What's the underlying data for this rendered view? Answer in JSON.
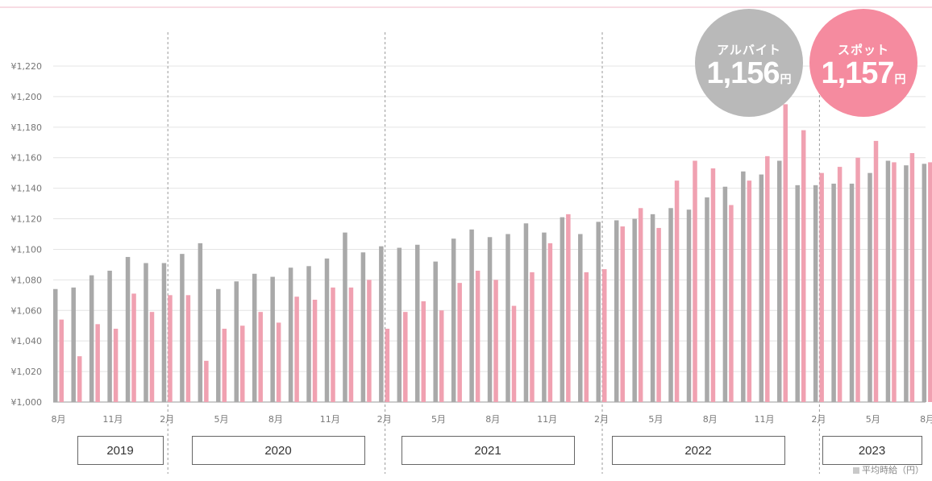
{
  "colors": {
    "arubaito": "#a9a9a9",
    "spot": "#f0a1b1",
    "badge_arubaito": "#b9b9b9",
    "badge_spot": "#f58b9f",
    "grid": "#e4e4e4"
  },
  "badges": [
    {
      "title": "アルバイト",
      "value": "1,156",
      "unit": "円"
    },
    {
      "title": "スポット",
      "value": "1,157",
      "unit": "円"
    }
  ],
  "footnote": "平均時給（円）",
  "chart_data": {
    "type": "bar",
    "ylim": [
      1000,
      1220
    ],
    "yticks": [
      "¥1,000",
      "¥1,020",
      "¥1,040",
      "¥1,060",
      "¥1,080",
      "¥1,100",
      "¥1,120",
      "¥1,140",
      "¥1,160",
      "¥1,180",
      "¥1,200",
      "¥1,220"
    ],
    "x": [
      "2019-08",
      "2019-09",
      "2019-10",
      "2019-11",
      "2019-12",
      "2020-01",
      "2020-02",
      "2020-03",
      "2020-04",
      "2020-05",
      "2020-06",
      "2020-07",
      "2020-08",
      "2020-09",
      "2020-10",
      "2020-11",
      "2020-12",
      "2021-01",
      "2021-02",
      "2021-03",
      "2021-04",
      "2021-05",
      "2021-06",
      "2021-07",
      "2021-08",
      "2021-09",
      "2021-10",
      "2021-11",
      "2021-12",
      "2022-01",
      "2022-02",
      "2022-03",
      "2022-04",
      "2022-05",
      "2022-06",
      "2022-07",
      "2022-08",
      "2022-09",
      "2022-10",
      "2022-11",
      "2022-12",
      "2023-01",
      "2023-02",
      "2023-03",
      "2023-04",
      "2023-05",
      "2023-06",
      "2023-07",
      "2023-08"
    ],
    "xtick_labels": [
      {
        "i": 0,
        "label": "8月"
      },
      {
        "i": 3,
        "label": "11月"
      },
      {
        "i": 6,
        "label": "2月"
      },
      {
        "i": 9,
        "label": "5月"
      },
      {
        "i": 12,
        "label": "8月"
      },
      {
        "i": 15,
        "label": "11月"
      },
      {
        "i": 18,
        "label": "2月"
      },
      {
        "i": 21,
        "label": "5月"
      },
      {
        "i": 24,
        "label": "8月"
      },
      {
        "i": 27,
        "label": "11月"
      },
      {
        "i": 30,
        "label": "2月"
      },
      {
        "i": 33,
        "label": "5月"
      },
      {
        "i": 36,
        "label": "8月"
      },
      {
        "i": 39,
        "label": "11月"
      },
      {
        "i": 42,
        "label": "2月"
      },
      {
        "i": 45,
        "label": "5月"
      },
      {
        "i": 48,
        "label": "8月"
      }
    ],
    "series": [
      {
        "values": [
          1074,
          1075,
          1083,
          1086,
          1095,
          1091,
          1091,
          1097,
          1104,
          1074,
          1079,
          1084,
          1082,
          1088,
          1089,
          1094,
          1111,
          1098,
          1102,
          1101,
          1103,
          1092,
          1107,
          1113,
          1108,
          1110,
          1117,
          1111,
          1121,
          1110,
          1118,
          1119,
          1120,
          1123,
          1127,
          1126,
          1134,
          1141,
          1151,
          1149,
          1158,
          1142,
          1142,
          1143,
          1143,
          1150,
          1158,
          1155,
          1156
        ]
      },
      {
        "values": [
          1054,
          1030,
          1051,
          1048,
          1071,
          1059,
          1070,
          1070,
          1027,
          1048,
          1050,
          1059,
          1052,
          1069,
          1067,
          1075,
          1075,
          1080,
          1048,
          1059,
          1066,
          1060,
          1078,
          1086,
          1080,
          1063,
          1085,
          1104,
          1123,
          1085,
          1087,
          1115,
          1127,
          1114,
          1145,
          1158,
          1153,
          1129,
          1145,
          1161,
          1195,
          1178,
          1150,
          1154,
          1160,
          1171,
          1157,
          1163,
          1157
        ]
      }
    ],
    "year_labels": [
      "2019",
      "2020",
      "2021",
      "2022",
      "2023"
    ]
  }
}
